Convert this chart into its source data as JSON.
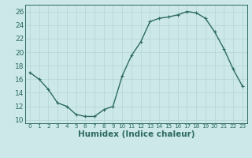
{
  "x": [
    0,
    1,
    2,
    3,
    4,
    5,
    6,
    7,
    8,
    9,
    10,
    11,
    12,
    13,
    14,
    15,
    16,
    17,
    18,
    19,
    20,
    21,
    22,
    23
  ],
  "y": [
    17,
    16,
    14.5,
    12.5,
    12,
    10.8,
    10.5,
    10.5,
    11.5,
    12,
    16.5,
    19.5,
    21.5,
    24.5,
    25,
    25.2,
    25.5,
    26,
    25.8,
    25,
    23,
    20.5,
    17.5,
    15
  ],
  "line_color": "#2d6b5e",
  "marker_color": "#2d6b5e",
  "bg_color": "#cce8e8",
  "grid_color": "#b8d8d8",
  "axis_color": "#2d6b5e",
  "xlabel": "Humidex (Indice chaleur)",
  "ylim": [
    9.5,
    27
  ],
  "xlim": [
    -0.5,
    23.5
  ],
  "yticks": [
    10,
    12,
    14,
    16,
    18,
    20,
    22,
    24,
    26
  ],
  "xticks": [
    0,
    1,
    2,
    3,
    4,
    5,
    6,
    7,
    8,
    9,
    10,
    11,
    12,
    13,
    14,
    15,
    16,
    17,
    18,
    19,
    20,
    21,
    22,
    23
  ],
  "fontsize_label": 7.5,
  "fontsize_tick": 6.5,
  "linewidth": 1.0,
  "markersize": 3.5
}
